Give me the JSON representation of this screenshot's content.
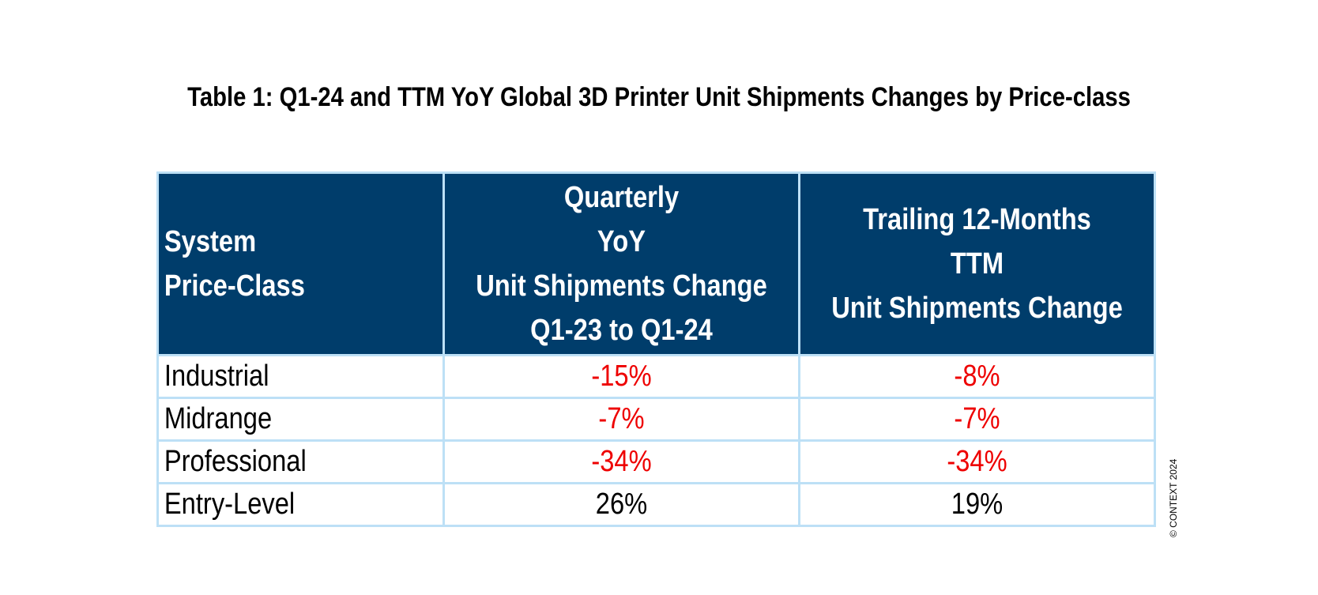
{
  "chart_data": {
    "type": "table",
    "title": "Table 1: Q1-24 and TTM YoY Global 3D Printer Unit Shipments Changes by Price-class",
    "columns": [
      {
        "lines": [
          "System",
          "Price-Class"
        ]
      },
      {
        "lines": [
          "Quarterly",
          "YoY",
          "Unit Shipments Change",
          "Q1-23 to Q1-24"
        ]
      },
      {
        "lines": [
          "Trailing 12-Months",
          "TTM",
          "Unit Shipments Change"
        ]
      }
    ],
    "rows": [
      {
        "label": "Industrial",
        "quarterly": "-15%",
        "ttm": "-8%",
        "quarterly_value": -15,
        "ttm_value": -8
      },
      {
        "label": "Midrange",
        "quarterly": "-7%",
        "ttm": "-7%",
        "quarterly_value": -7,
        "ttm_value": -7
      },
      {
        "label": "Professional",
        "quarterly": "-34%",
        "ttm": "-34%",
        "quarterly_value": -34,
        "ttm_value": -34
      },
      {
        "label": "Entry-Level",
        "quarterly": "26%",
        "ttm": "19%",
        "quarterly_value": 26,
        "ttm_value": 19
      }
    ],
    "colors": {
      "header_background": "#003d6b",
      "header_text": "#ffffff",
      "grid_lines": "#bde0f6",
      "negative_value": "#ee0000",
      "positive_value": "#000000"
    }
  },
  "copyright": "© CONTEXT 2024"
}
